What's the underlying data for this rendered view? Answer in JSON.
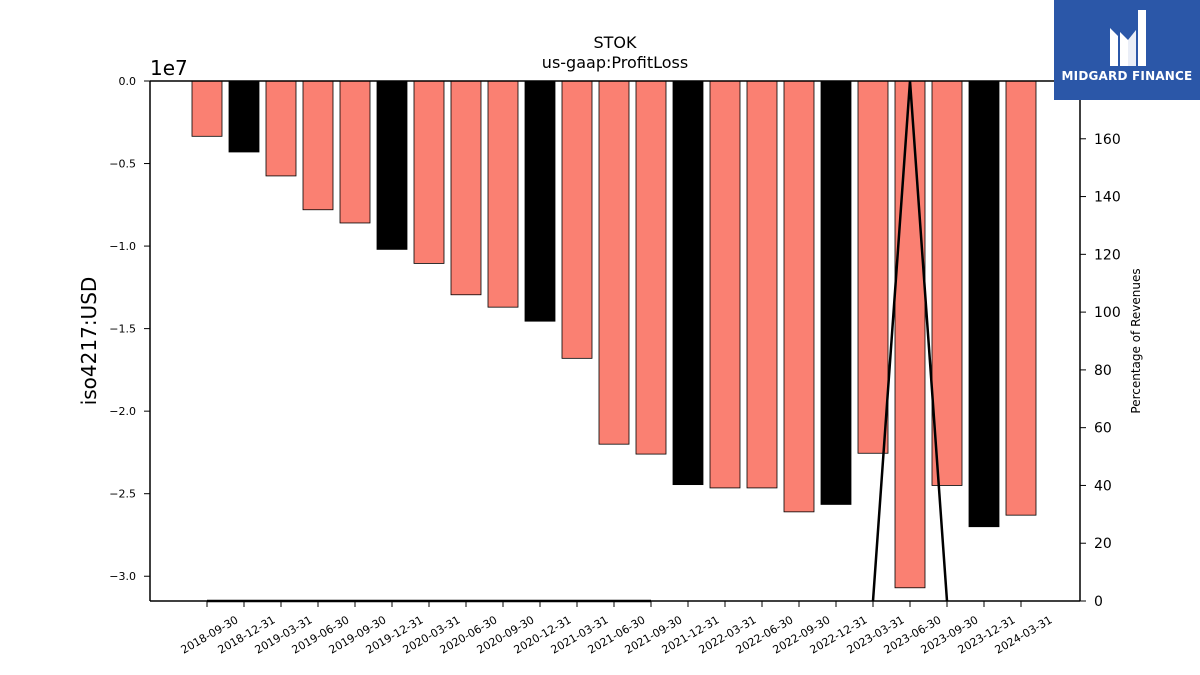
{
  "brand": {
    "name": "MIDGARD FINANCE",
    "accent": "#2b57a8"
  },
  "chart_data": {
    "type": "bar",
    "title": "STOK",
    "subtitle": "us-gaap:ProfitLoss",
    "ylabel": "iso4217:USD",
    "y_offset_text": "1e7",
    "y2label": "Percentage of Revenues",
    "ylim": [
      -31500000,
      0
    ],
    "y2lim": [
      0,
      180
    ],
    "yticks": [
      0.0,
      -0.5,
      -1.0,
      -1.5,
      -2.0,
      -2.5,
      -3.0
    ],
    "y2ticks": [
      0,
      20,
      40,
      60,
      80,
      100,
      120,
      140,
      160
    ],
    "grid": false,
    "categories": [
      "2018-09-30",
      "2018-12-31",
      "2019-03-31",
      "2019-06-30",
      "2019-09-30",
      "2019-12-31",
      "2020-03-31",
      "2020-06-30",
      "2020-09-30",
      "2020-12-31",
      "2021-03-31",
      "2021-06-30",
      "2021-09-30",
      "2021-12-31",
      "2022-03-31",
      "2022-06-30",
      "2022-09-30",
      "2022-12-31",
      "2023-03-31",
      "2023-06-30",
      "2023-09-30",
      "2023-12-31",
      "2024-03-31"
    ],
    "values": [
      -3350000,
      -4300000,
      -5750000,
      -7800000,
      -8600000,
      -10200000,
      -11050000,
      -12950000,
      -13700000,
      -14550000,
      -16800000,
      -22000000,
      -22600000,
      -24450000,
      -24650000,
      -24650000,
      -26100000,
      -25650000,
      -22550000,
      -30700000,
      -24500000,
      -27000000,
      -26300000
    ],
    "period_type": [
      "Q",
      "FY",
      "Q",
      "Q",
      "Q",
      "FY",
      "Q",
      "Q",
      "Q",
      "FY",
      "Q",
      "Q",
      "Q",
      "FY",
      "Q",
      "Q",
      "Q",
      "FY",
      "Q",
      "Q",
      "Q",
      "FY",
      "Q"
    ],
    "colors": {
      "quarter": "#fa8072",
      "annual": "#000000",
      "line": "#000000"
    },
    "percent_of_revenues": [
      0,
      0,
      0,
      0,
      0,
      0,
      0,
      0,
      0,
      0,
      0,
      0,
      0,
      null,
      null,
      null,
      null,
      null,
      0,
      190,
      0,
      null,
      null
    ]
  }
}
